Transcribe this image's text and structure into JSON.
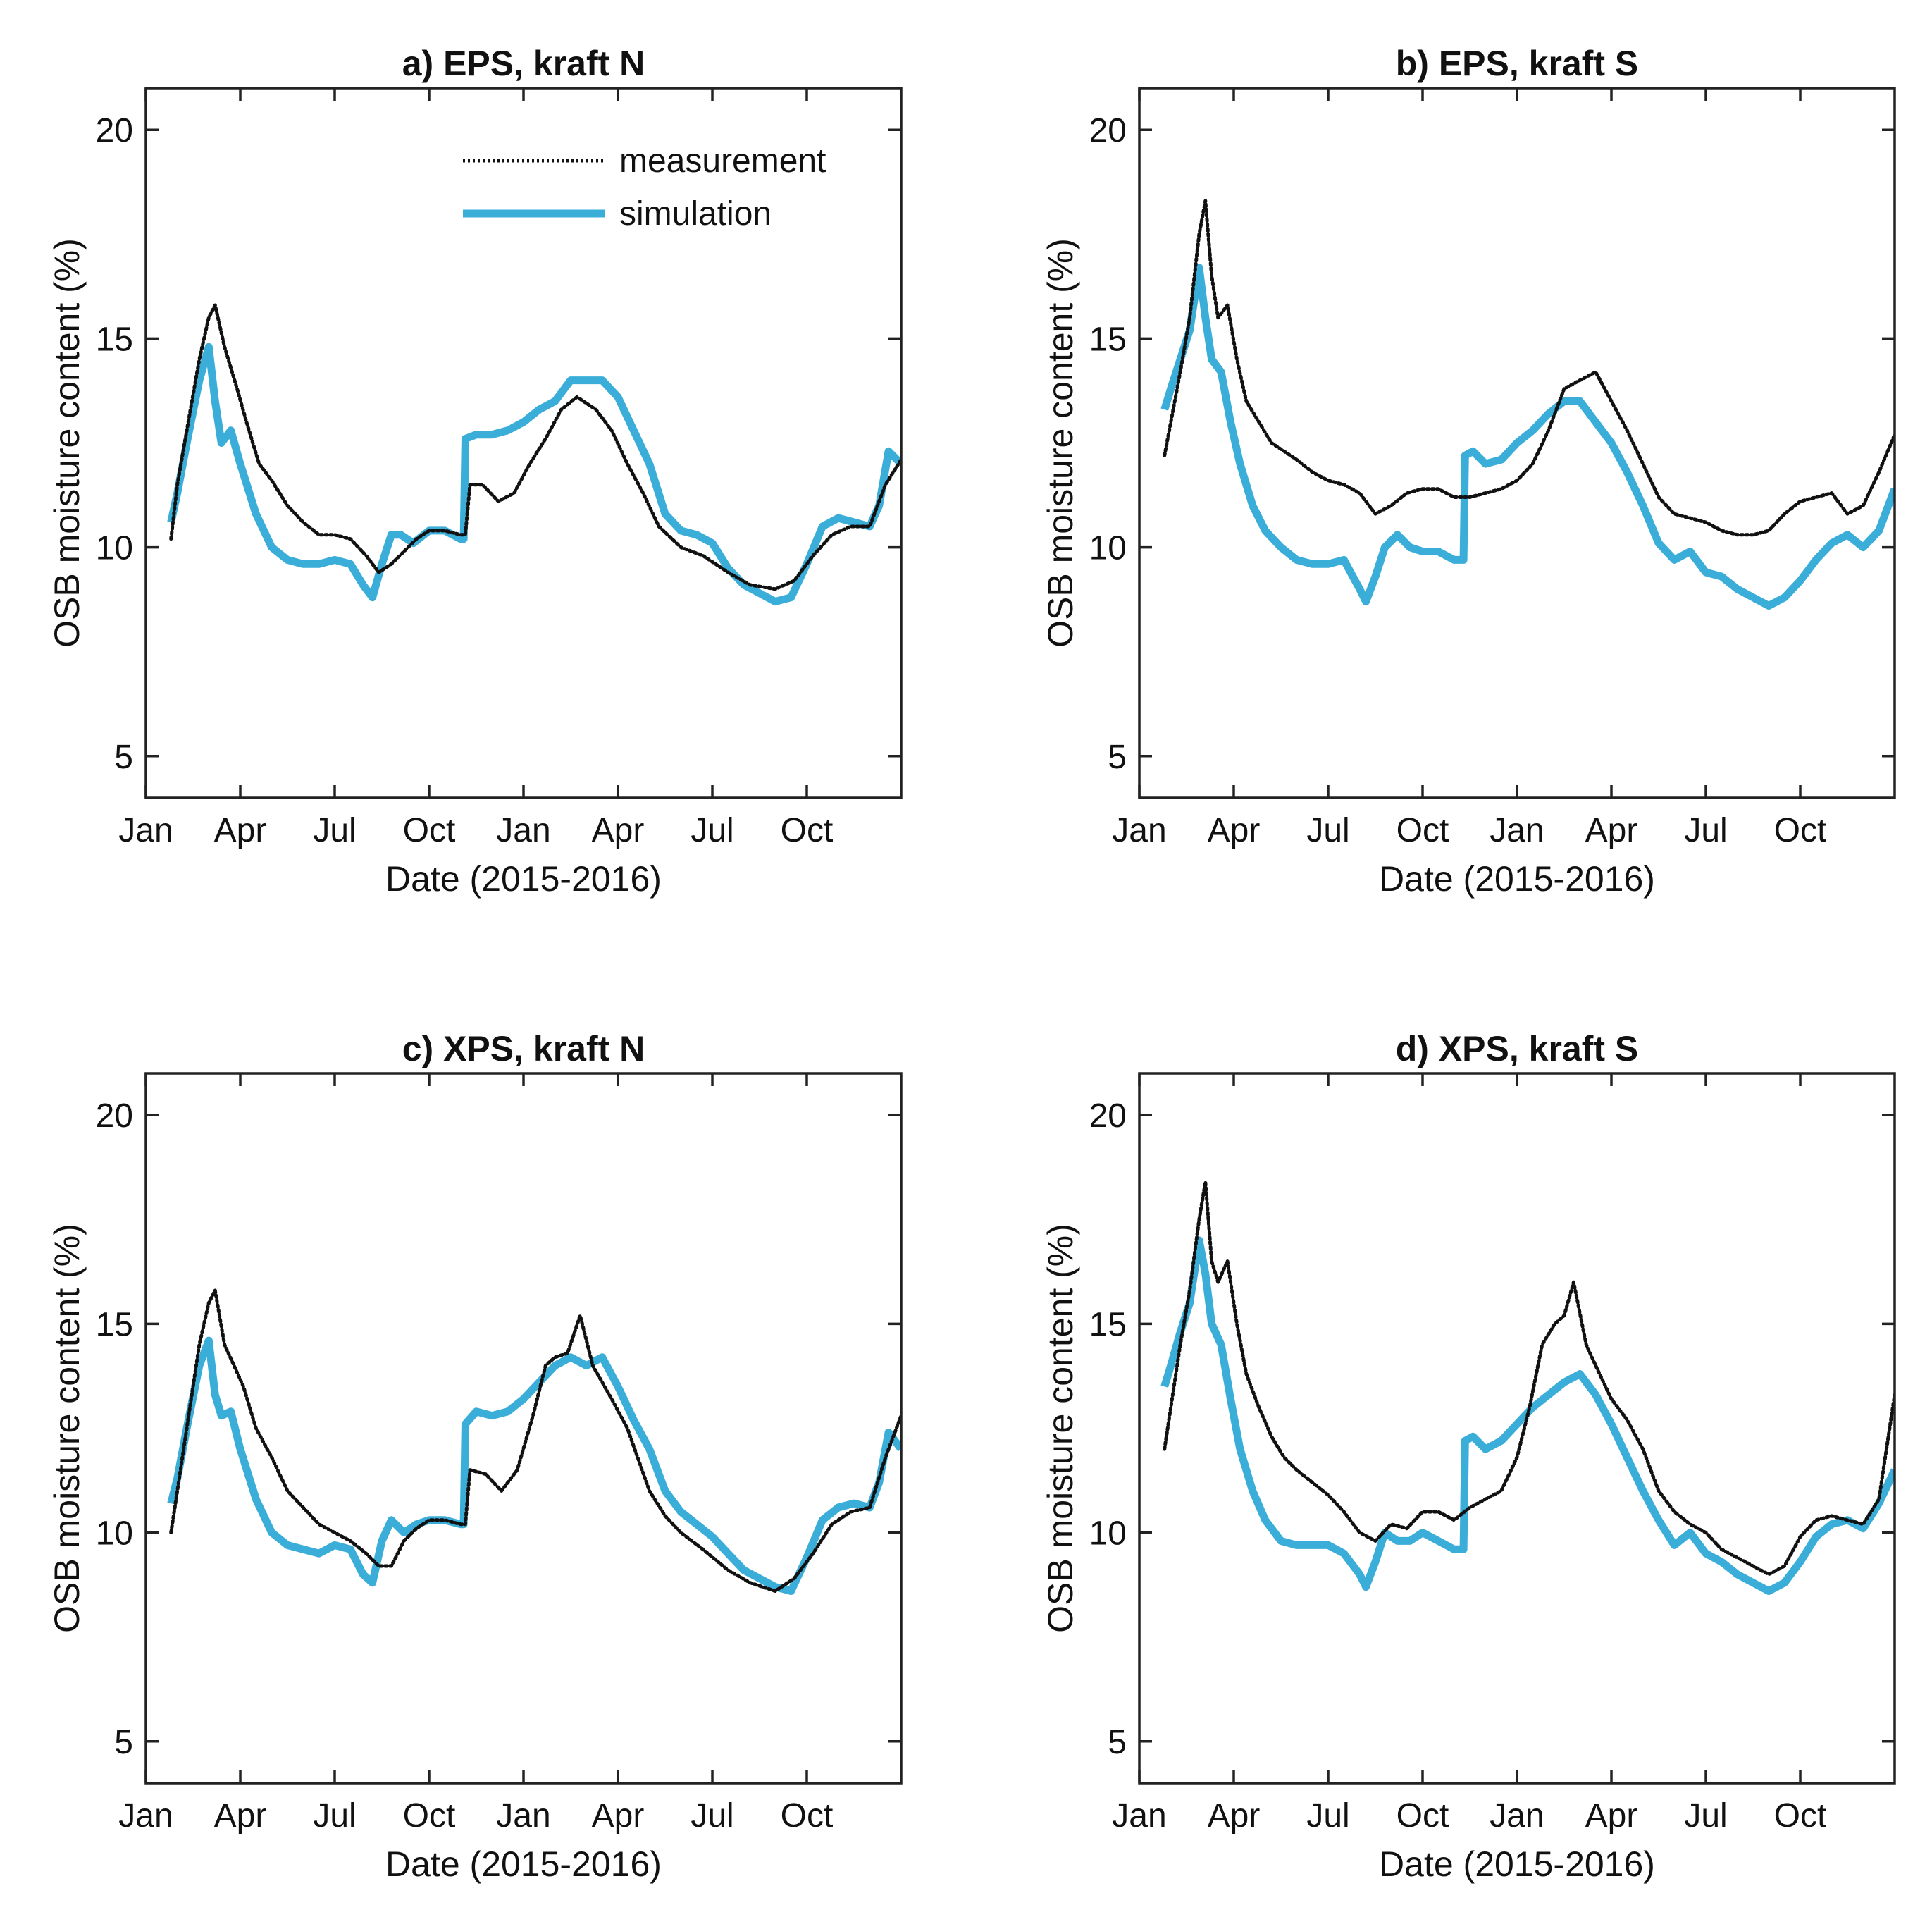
{
  "figure": {
    "colors": {
      "measurement": "#111111",
      "simulation": "#3aaed8",
      "axes": "#222222"
    },
    "legend": {
      "measurement_label": "measurement",
      "simulation_label": "simulation",
      "panel": 0,
      "placement": "top-right"
    }
  },
  "chart_data": [
    {
      "type": "line",
      "title": "a) EPS, kraft N",
      "xlabel": "Date (2015-2016)",
      "ylabel": "OSB moisture content (%)",
      "xlim": [
        0,
        24
      ],
      "ylim": [
        4,
        21
      ],
      "x_unit": "months since 1 Jan 2015",
      "xticks": [
        0,
        3,
        6,
        9,
        12,
        15,
        18,
        21
      ],
      "xticklabels": [
        "Jan",
        "Apr",
        "Jul",
        "Oct",
        "Jan",
        "Apr",
        "Jul",
        "Oct"
      ],
      "yticks": [
        5,
        10,
        15,
        20
      ],
      "yticklabels": [
        "5",
        "10",
        "15",
        "20"
      ],
      "series": [
        {
          "name": "measurement",
          "style": "dotted",
          "x": [
            0.8,
            1.0,
            1.3,
            1.7,
            2.0,
            2.2,
            2.5,
            2.9,
            3.2,
            3.6,
            4.0,
            4.5,
            5.0,
            5.5,
            6.0,
            6.5,
            7.0,
            7.4,
            7.8,
            8.2,
            8.6,
            9.0,
            9.5,
            10.0,
            10.15,
            10.3,
            10.7,
            11.2,
            11.7,
            12.2,
            12.7,
            13.2,
            13.7,
            14.3,
            14.8,
            15.3,
            15.8,
            16.3,
            17.0,
            17.7,
            18.5,
            19.2,
            20.0,
            20.6,
            21.2,
            21.8,
            22.4,
            23.0,
            23.5,
            24.0
          ],
          "y": [
            10.2,
            11.5,
            12.8,
            14.5,
            15.5,
            15.8,
            14.8,
            13.8,
            13.0,
            12.0,
            11.6,
            11.0,
            10.6,
            10.3,
            10.3,
            10.2,
            9.8,
            9.4,
            9.6,
            9.9,
            10.2,
            10.4,
            10.4,
            10.3,
            10.3,
            11.5,
            11.5,
            11.1,
            11.3,
            12.0,
            12.6,
            13.3,
            13.6,
            13.3,
            12.8,
            12.0,
            11.3,
            10.5,
            10.0,
            9.8,
            9.4,
            9.1,
            9.0,
            9.2,
            9.8,
            10.3,
            10.5,
            10.5,
            11.5,
            12.1
          ]
        },
        {
          "name": "simulation",
          "style": "solid",
          "x": [
            0.8,
            1.0,
            1.3,
            1.7,
            2.0,
            2.2,
            2.4,
            2.7,
            3.0,
            3.5,
            4.0,
            4.5,
            5.0,
            5.5,
            6.0,
            6.5,
            6.9,
            7.2,
            7.5,
            7.8,
            8.1,
            8.5,
            9.0,
            9.5,
            10.0,
            10.1,
            10.15,
            10.5,
            11.0,
            11.5,
            12.0,
            12.5,
            13.0,
            13.5,
            14.0,
            14.5,
            15.0,
            15.5,
            16.0,
            16.5,
            17.0,
            17.5,
            18.0,
            18.5,
            19.0,
            19.5,
            20.0,
            20.5,
            21.0,
            21.5,
            22.0,
            22.5,
            23.0,
            23.3,
            23.6,
            24.0
          ],
          "y": [
            10.6,
            11.3,
            12.5,
            14.0,
            14.8,
            13.5,
            12.5,
            12.8,
            12.0,
            10.8,
            10.0,
            9.7,
            9.6,
            9.6,
            9.7,
            9.6,
            9.1,
            8.8,
            9.6,
            10.3,
            10.3,
            10.1,
            10.4,
            10.4,
            10.2,
            10.2,
            12.6,
            12.7,
            12.7,
            12.8,
            13.0,
            13.3,
            13.5,
            14.0,
            14.0,
            14.0,
            13.6,
            12.8,
            12.0,
            10.8,
            10.4,
            10.3,
            10.1,
            9.5,
            9.1,
            8.9,
            8.7,
            8.8,
            9.6,
            10.5,
            10.7,
            10.6,
            10.5,
            11.0,
            12.3,
            12.0
          ]
        }
      ]
    },
    {
      "type": "line",
      "title": "b) EPS, kraft S",
      "xlabel": "Date (2015-2016)",
      "ylabel": "OSB moisture content (%)",
      "xlim": [
        0,
        24
      ],
      "ylim": [
        4,
        21
      ],
      "x_unit": "months since 1 Jan 2015",
      "xticks": [
        0,
        3,
        6,
        9,
        12,
        15,
        18,
        21
      ],
      "xticklabels": [
        "Jan",
        "Apr",
        "Jul",
        "Oct",
        "Jan",
        "Apr",
        "Jul",
        "Oct"
      ],
      "yticks": [
        5,
        10,
        15,
        20
      ],
      "yticklabels": [
        "5",
        "10",
        "15",
        "20"
      ],
      "series": [
        {
          "name": "measurement",
          "style": "dotted",
          "x": [
            0.8,
            1.0,
            1.3,
            1.6,
            1.9,
            2.1,
            2.3,
            2.5,
            2.8,
            3.1,
            3.4,
            3.8,
            4.2,
            4.6,
            5.0,
            5.5,
            6.0,
            6.5,
            7.0,
            7.5,
            8.0,
            8.5,
            9.0,
            9.5,
            10.0,
            10.5,
            11.0,
            11.5,
            12.0,
            12.5,
            13.0,
            13.5,
            14.0,
            14.5,
            15.0,
            15.5,
            16.0,
            16.5,
            17.0,
            17.5,
            18.0,
            18.5,
            19.0,
            19.5,
            20.0,
            20.5,
            21.0,
            21.5,
            22.0,
            22.5,
            23.0,
            23.5,
            24.0
          ],
          "y": [
            12.2,
            13.0,
            14.2,
            15.5,
            17.5,
            18.3,
            16.5,
            15.5,
            15.8,
            14.5,
            13.5,
            13.0,
            12.5,
            12.3,
            12.1,
            11.8,
            11.6,
            11.5,
            11.3,
            10.8,
            11.0,
            11.3,
            11.4,
            11.4,
            11.2,
            11.2,
            11.3,
            11.4,
            11.6,
            12.0,
            12.8,
            13.8,
            14.0,
            14.2,
            13.5,
            12.8,
            12.0,
            11.2,
            10.8,
            10.7,
            10.6,
            10.4,
            10.3,
            10.3,
            10.4,
            10.8,
            11.1,
            11.2,
            11.3,
            10.8,
            11.0,
            11.8,
            12.7
          ]
        },
        {
          "name": "simulation",
          "style": "solid",
          "x": [
            0.8,
            1.0,
            1.3,
            1.6,
            1.9,
            2.1,
            2.3,
            2.6,
            2.9,
            3.2,
            3.6,
            4.0,
            4.5,
            5.0,
            5.5,
            6.0,
            6.5,
            7.0,
            7.2,
            7.5,
            7.8,
            8.2,
            8.6,
            9.0,
            9.5,
            10.0,
            10.3,
            10.35,
            10.6,
            11.0,
            11.5,
            12.0,
            12.5,
            13.0,
            13.5,
            14.0,
            14.5,
            15.0,
            15.5,
            16.0,
            16.5,
            17.0,
            17.5,
            18.0,
            18.5,
            19.0,
            19.5,
            20.0,
            20.5,
            21.0,
            21.5,
            22.0,
            22.5,
            23.0,
            23.5,
            24.0
          ],
          "y": [
            13.3,
            13.8,
            14.5,
            15.2,
            16.7,
            15.5,
            14.5,
            14.2,
            13.0,
            12.0,
            11.0,
            10.4,
            10.0,
            9.7,
            9.6,
            9.6,
            9.7,
            9.0,
            8.7,
            9.3,
            10.0,
            10.3,
            10.0,
            9.9,
            9.9,
            9.7,
            9.7,
            12.2,
            12.3,
            12.0,
            12.1,
            12.5,
            12.8,
            13.2,
            13.5,
            13.5,
            13.0,
            12.5,
            11.8,
            11.0,
            10.1,
            9.7,
            9.9,
            9.4,
            9.3,
            9.0,
            8.8,
            8.6,
            8.8,
            9.2,
            9.7,
            10.1,
            10.3,
            10.0,
            10.4,
            11.4
          ]
        }
      ]
    },
    {
      "type": "line",
      "title": "c) XPS, kraft N",
      "xlabel": "Date (2015-2016)",
      "ylabel": "OSB moisture content (%)",
      "xlim": [
        0,
        24
      ],
      "ylim": [
        4,
        21
      ],
      "x_unit": "months since 1 Jan 2015",
      "xticks": [
        0,
        3,
        6,
        9,
        12,
        15,
        18,
        21
      ],
      "xticklabels": [
        "Jan",
        "Apr",
        "Jul",
        "Oct",
        "Jan",
        "Apr",
        "Jul",
        "Oct"
      ],
      "yticks": [
        5,
        10,
        15,
        20
      ],
      "yticklabels": [
        "5",
        "10",
        "15",
        "20"
      ],
      "series": [
        {
          "name": "measurement",
          "style": "dotted",
          "x": [
            0.8,
            1.0,
            1.3,
            1.7,
            2.0,
            2.2,
            2.5,
            2.8,
            3.1,
            3.5,
            4.0,
            4.5,
            5.0,
            5.5,
            6.0,
            6.5,
            7.0,
            7.4,
            7.8,
            8.2,
            8.6,
            9.0,
            9.5,
            10.0,
            10.15,
            10.3,
            10.8,
            11.3,
            11.8,
            12.3,
            12.7,
            13.0,
            13.4,
            13.8,
            14.2,
            14.8,
            15.3,
            16.0,
            16.5,
            17.0,
            17.7,
            18.5,
            19.2,
            20.0,
            20.6,
            21.2,
            21.8,
            22.4,
            23.0,
            23.5,
            24.0
          ],
          "y": [
            10.0,
            11.0,
            12.5,
            14.5,
            15.5,
            15.8,
            14.5,
            14.0,
            13.5,
            12.5,
            11.8,
            11.0,
            10.6,
            10.2,
            10.0,
            9.8,
            9.5,
            9.2,
            9.2,
            9.8,
            10.1,
            10.3,
            10.3,
            10.2,
            10.2,
            11.5,
            11.4,
            11.0,
            11.5,
            12.8,
            14.0,
            14.2,
            14.3,
            15.2,
            14.0,
            13.2,
            12.5,
            11.0,
            10.4,
            10.0,
            9.6,
            9.1,
            8.8,
            8.6,
            8.9,
            9.5,
            10.2,
            10.5,
            10.6,
            11.8,
            12.8
          ]
        },
        {
          "name": "simulation",
          "style": "solid",
          "x": [
            0.8,
            1.0,
            1.3,
            1.7,
            2.0,
            2.2,
            2.4,
            2.7,
            3.0,
            3.5,
            4.0,
            4.5,
            5.0,
            5.5,
            6.0,
            6.5,
            6.9,
            7.2,
            7.5,
            7.8,
            8.2,
            8.6,
            9.0,
            9.5,
            10.0,
            10.1,
            10.15,
            10.5,
            11.0,
            11.5,
            12.0,
            12.5,
            13.0,
            13.5,
            14.0,
            14.5,
            15.0,
            15.5,
            16.0,
            16.5,
            17.0,
            17.5,
            18.0,
            18.5,
            19.0,
            19.5,
            20.0,
            20.5,
            21.0,
            21.5,
            22.0,
            22.5,
            23.0,
            23.3,
            23.6,
            24.0
          ],
          "y": [
            10.7,
            11.3,
            12.5,
            14.0,
            14.6,
            13.3,
            12.8,
            12.9,
            12.0,
            10.8,
            10.0,
            9.7,
            9.6,
            9.5,
            9.7,
            9.6,
            9.0,
            8.8,
            9.8,
            10.3,
            10.0,
            10.2,
            10.3,
            10.3,
            10.2,
            10.2,
            12.6,
            12.9,
            12.8,
            12.9,
            13.2,
            13.6,
            14.0,
            14.2,
            14.0,
            14.2,
            13.5,
            12.7,
            12.0,
            11.0,
            10.5,
            10.2,
            9.9,
            9.5,
            9.1,
            8.9,
            8.7,
            8.6,
            9.4,
            10.3,
            10.6,
            10.7,
            10.6,
            11.2,
            12.4,
            12.0
          ]
        }
      ]
    },
    {
      "type": "line",
      "title": "d) XPS, kraft S",
      "xlabel": "Date (2015-2016)",
      "ylabel": "OSB moisture content (%)",
      "xlim": [
        0,
        24
      ],
      "ylim": [
        4,
        21
      ],
      "x_unit": "months since 1 Jan 2015",
      "xticks": [
        0,
        3,
        6,
        9,
        12,
        15,
        18,
        21
      ],
      "xticklabels": [
        "Jan",
        "Apr",
        "Jul",
        "Oct",
        "Jan",
        "Apr",
        "Jul",
        "Oct"
      ],
      "yticks": [
        5,
        10,
        15,
        20
      ],
      "yticklabels": [
        "5",
        "10",
        "15",
        "20"
      ],
      "series": [
        {
          "name": "measurement",
          "style": "dotted",
          "x": [
            0.8,
            1.0,
            1.3,
            1.6,
            1.9,
            2.1,
            2.3,
            2.5,
            2.8,
            3.1,
            3.4,
            3.8,
            4.2,
            4.6,
            5.0,
            5.5,
            6.0,
            6.5,
            7.0,
            7.5,
            8.0,
            8.5,
            9.0,
            9.5,
            10.0,
            10.5,
            11.0,
            11.5,
            12.0,
            12.4,
            12.8,
            13.2,
            13.5,
            13.8,
            14.2,
            14.5,
            15.0,
            15.5,
            16.0,
            16.5,
            17.0,
            17.5,
            18.0,
            18.5,
            19.0,
            19.5,
            20.0,
            20.5,
            21.0,
            21.5,
            22.0,
            22.5,
            23.0,
            23.5,
            24.0
          ],
          "y": [
            12.0,
            13.0,
            14.5,
            15.8,
            17.5,
            18.4,
            16.5,
            16.0,
            16.5,
            15.0,
            13.8,
            13.0,
            12.3,
            11.8,
            11.5,
            11.2,
            10.9,
            10.5,
            10.0,
            9.8,
            10.2,
            10.1,
            10.5,
            10.5,
            10.3,
            10.6,
            10.8,
            11.0,
            11.8,
            13.0,
            14.5,
            15.0,
            15.2,
            16.0,
            14.5,
            14.0,
            13.2,
            12.7,
            12.0,
            11.0,
            10.5,
            10.2,
            10.0,
            9.6,
            9.4,
            9.2,
            9.0,
            9.2,
            9.9,
            10.3,
            10.4,
            10.3,
            10.2,
            10.8,
            13.3
          ]
        },
        {
          "name": "simulation",
          "style": "solid",
          "x": [
            0.8,
            1.0,
            1.3,
            1.6,
            1.9,
            2.1,
            2.3,
            2.6,
            2.9,
            3.2,
            3.6,
            4.0,
            4.5,
            5.0,
            5.5,
            6.0,
            6.5,
            7.0,
            7.2,
            7.5,
            7.8,
            8.2,
            8.6,
            9.0,
            9.5,
            10.0,
            10.3,
            10.35,
            10.6,
            11.0,
            11.5,
            12.0,
            12.5,
            13.0,
            13.5,
            14.0,
            14.5,
            15.0,
            15.5,
            16.0,
            16.5,
            17.0,
            17.5,
            18.0,
            18.5,
            19.0,
            19.5,
            20.0,
            20.5,
            21.0,
            21.5,
            22.0,
            22.5,
            23.0,
            23.5,
            24.0
          ],
          "y": [
            13.5,
            14.0,
            14.8,
            15.5,
            17.0,
            16.2,
            15.0,
            14.5,
            13.2,
            12.0,
            11.0,
            10.3,
            9.8,
            9.7,
            9.7,
            9.7,
            9.5,
            9.0,
            8.7,
            9.3,
            10.0,
            9.8,
            9.8,
            10.0,
            9.8,
            9.6,
            9.6,
            12.2,
            12.3,
            12.0,
            12.2,
            12.6,
            13.0,
            13.3,
            13.6,
            13.8,
            13.3,
            12.6,
            11.8,
            11.0,
            10.3,
            9.7,
            10.0,
            9.5,
            9.3,
            9.0,
            8.8,
            8.6,
            8.8,
            9.3,
            9.9,
            10.2,
            10.3,
            10.1,
            10.7,
            11.5
          ]
        }
      ]
    }
  ]
}
